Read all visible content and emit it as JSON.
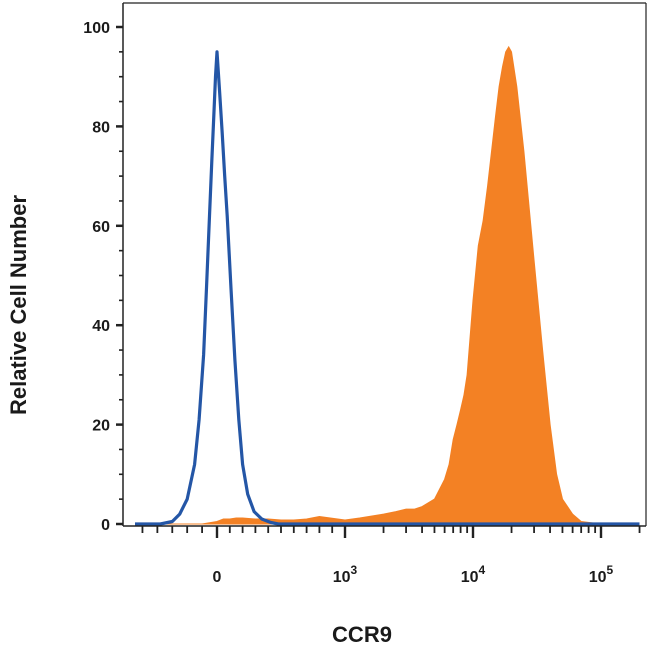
{
  "chart_data": {
    "type": "area",
    "xlabel": "CCR9",
    "ylabel": "Relative Cell Number",
    "xscale": "biexponential",
    "xlim": [
      -550,
      200000
    ],
    "ylim": [
      0,
      100
    ],
    "grid": false,
    "y_ticks": [
      {
        "value": 0,
        "label": "0"
      },
      {
        "value": 20,
        "label": "20"
      },
      {
        "value": 40,
        "label": "40"
      },
      {
        "value": 60,
        "label": "60"
      },
      {
        "value": 80,
        "label": "80"
      },
      {
        "value": 100,
        "label": "100"
      }
    ],
    "x_ticks": [
      {
        "value": 0,
        "base": "0",
        "exp": ""
      },
      {
        "value": 1000,
        "base": "10",
        "exp": "3"
      },
      {
        "value": 10000,
        "base": "10",
        "exp": "4"
      },
      {
        "value": 100000,
        "base": "10",
        "exp": "5"
      }
    ],
    "series": [
      {
        "kind": "line",
        "color": "#2456a6",
        "x": [
          -550,
          -380,
          -300,
          -250,
          -200,
          -150,
          -120,
          -90,
          -70,
          -50,
          -35,
          -20,
          -10,
          0,
          10,
          20,
          40,
          60,
          80,
          110,
          140,
          170,
          200,
          240,
          290,
          350,
          420,
          480,
          540,
          700,
          1000,
          3000,
          10000,
          100000,
          200000
        ],
        "y": [
          0,
          0,
          0.5,
          2,
          5,
          12,
          21,
          34,
          48,
          62,
          73,
          83,
          90,
          95,
          91,
          87,
          79,
          70,
          62,
          47,
          33,
          21,
          12,
          6,
          2.5,
          1,
          0.3,
          0,
          0,
          0,
          0,
          0,
          0,
          0,
          0
        ]
      },
      {
        "kind": "filled",
        "color": "#f38124",
        "x": [
          -550,
          -300,
          -100,
          0,
          50,
          100,
          150,
          200,
          300,
          400,
          500,
          600,
          700,
          800,
          1000,
          1300,
          2000,
          2500,
          3000,
          3500,
          4000,
          5000,
          6000,
          6500,
          7000,
          7500,
          8000,
          8500,
          9000,
          10000,
          11000,
          12000,
          13000,
          15000,
          16000,
          17000,
          18000,
          19000,
          20000,
          22000,
          25000,
          30000,
          35000,
          40000,
          45000,
          50000,
          60000,
          70000,
          100000,
          200000
        ],
        "y": [
          0,
          0,
          0,
          0.5,
          1,
          1,
          1.2,
          1.2,
          1,
          1,
          0.8,
          0.8,
          1,
          1.5,
          0.8,
          1.2,
          2,
          2.5,
          3,
          3,
          3.5,
          5,
          9,
          12,
          17,
          20,
          23,
          26,
          30,
          45,
          56,
          61,
          68,
          82,
          88,
          92,
          95,
          96,
          95,
          88,
          75,
          53,
          35,
          20,
          10,
          5,
          2,
          0.5,
          0,
          0
        ]
      }
    ]
  }
}
